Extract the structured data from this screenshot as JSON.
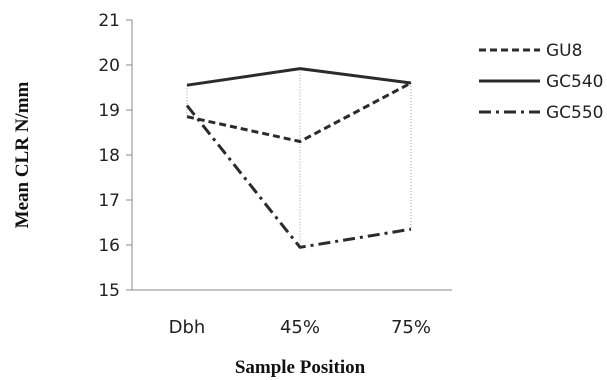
{
  "chart_data": {
    "type": "line",
    "categories": [
      "Dbh",
      "45%",
      "75%"
    ],
    "xlabel": "Sample Position",
    "ylabel": "Mean CLR N/mm",
    "ylim": [
      15,
      21
    ],
    "yticks": [
      15,
      16,
      17,
      18,
      19,
      20,
      21
    ],
    "grid": false,
    "drop_lines": true,
    "legend_position": "right",
    "series": [
      {
        "name": "GU8",
        "values": [
          18.85,
          18.3,
          19.6
        ],
        "style": "dashed",
        "color": "#2b2b2b"
      },
      {
        "name": "GC540",
        "values": [
          19.55,
          19.92,
          19.6
        ],
        "style": "solid",
        "color": "#2b2b2b"
      },
      {
        "name": "GC550",
        "values": [
          19.1,
          15.95,
          16.35
        ],
        "style": "dashdot",
        "color": "#2b2b2b"
      }
    ]
  }
}
